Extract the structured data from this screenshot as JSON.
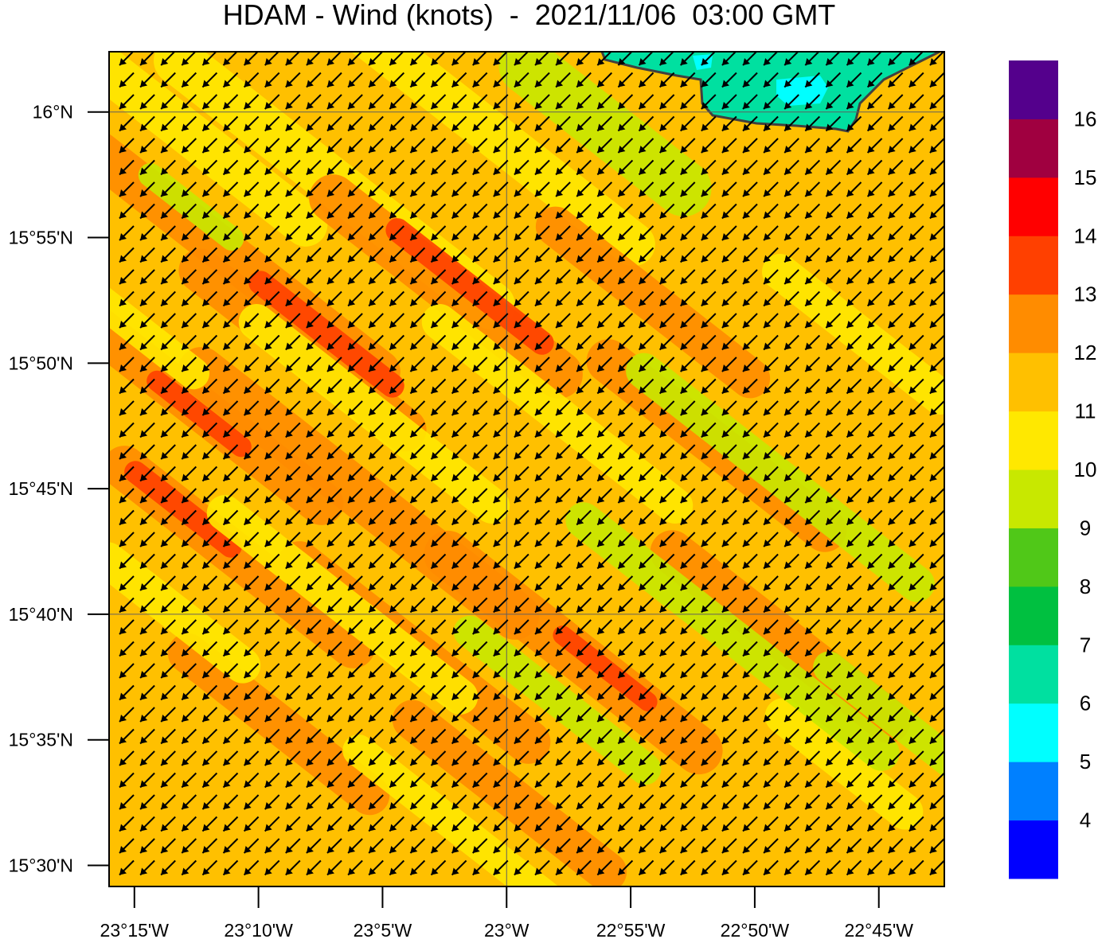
{
  "title": "HDAM - Wind (knots)  -  2021/11/06  03:00 GMT",
  "map": {
    "x_ticks": [
      "23°15'W",
      "23°10'W",
      "23°5'W",
      "23°W",
      "22°55'W",
      "22°50'W",
      "22°45'W"
    ],
    "y_ticks": [
      "16°N",
      "15°55'N",
      "15°50'N",
      "15°45'N",
      "15°40'N",
      "15°35'N",
      "15°30'N"
    ],
    "lon_range": [
      -23.267,
      -22.706
    ],
    "lat_range": [
      15.486,
      16.04
    ],
    "grid_lons": [
      -23.0
    ],
    "grid_lats": [
      16.0,
      15.6667
    ],
    "wind_direction": "from northeast",
    "island": "land area with low winds (6-7 knots) at top right"
  },
  "colorbar": {
    "labels": [
      "4",
      "5",
      "6",
      "7",
      "8",
      "9",
      "10",
      "11",
      "12",
      "13",
      "14",
      "15",
      "16"
    ],
    "colors": [
      "#0000ff",
      "#0080ff",
      "#00ffff",
      "#00e0a0",
      "#00c040",
      "#50c818",
      "#c8e800",
      "#ffe800",
      "#ffc000",
      "#ff8c00",
      "#ff4000",
      "#ff0000",
      "#a00040",
      "#54008c"
    ]
  }
}
